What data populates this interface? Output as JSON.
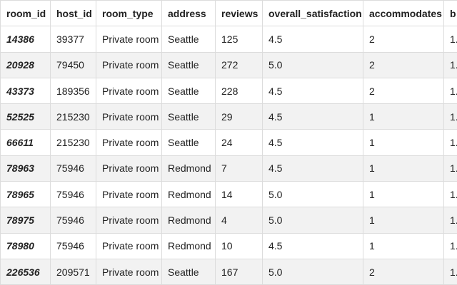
{
  "table": {
    "columns": [
      "room_id",
      "host_id",
      "room_type",
      "address",
      "reviews",
      "overall_satisfaction",
      "accommodates",
      "b"
    ],
    "rows": [
      [
        "14386",
        "39377",
        "Private room",
        "Seattle",
        "125",
        "4.5",
        "2",
        "1."
      ],
      [
        "20928",
        "79450",
        "Private room",
        "Seattle",
        "272",
        "5.0",
        "2",
        "1."
      ],
      [
        "43373",
        "189356",
        "Private room",
        "Seattle",
        "228",
        "4.5",
        "2",
        "1."
      ],
      [
        "52525",
        "215230",
        "Private room",
        "Seattle",
        "29",
        "4.5",
        "1",
        "1."
      ],
      [
        "66611",
        "215230",
        "Private room",
        "Seattle",
        "24",
        "4.5",
        "1",
        "1."
      ],
      [
        "78963",
        "75946",
        "Private room",
        "Redmond",
        "7",
        "4.5",
        "1",
        "1."
      ],
      [
        "78965",
        "75946",
        "Private room",
        "Redmond",
        "14",
        "5.0",
        "1",
        "1."
      ],
      [
        "78975",
        "75946",
        "Private room",
        "Redmond",
        "4",
        "5.0",
        "1",
        "1."
      ],
      [
        "78980",
        "75946",
        "Private room",
        "Redmond",
        "10",
        "4.5",
        "1",
        "1."
      ],
      [
        "226536",
        "209571",
        "Private room",
        "Seattle",
        "167",
        "5.0",
        "2",
        "1."
      ]
    ]
  }
}
